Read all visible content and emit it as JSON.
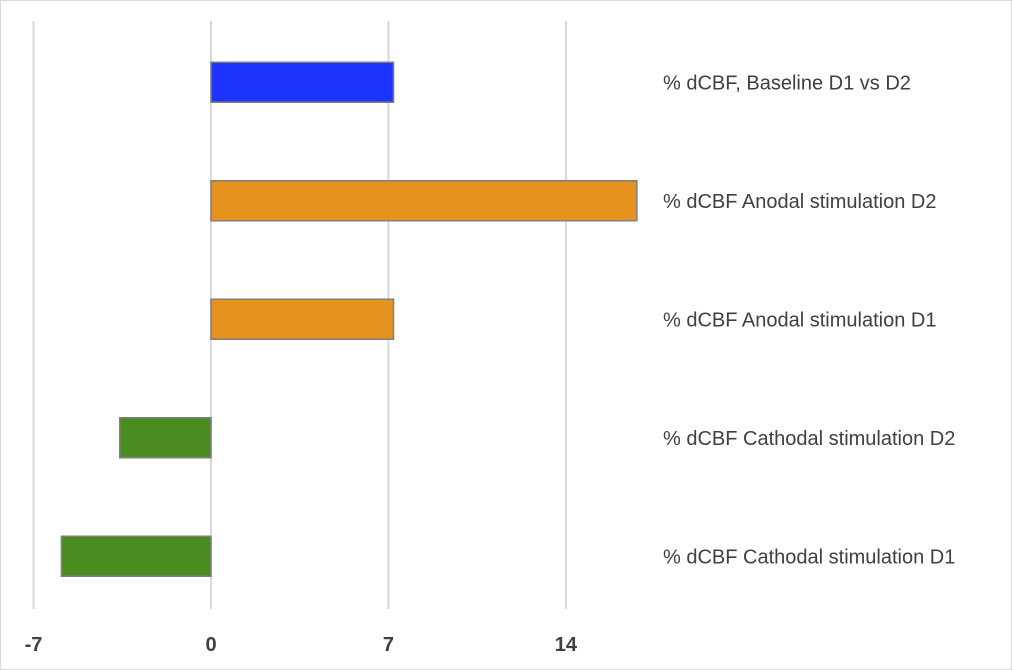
{
  "chart_data": {
    "type": "bar",
    "orientation": "horizontal",
    "title": "",
    "xlabel": "",
    "ylabel": "",
    "xlim": [
      -7,
      21
    ],
    "x_ticks": [
      -7,
      0,
      7,
      14
    ],
    "grid": true,
    "legend": "none",
    "categories": [
      "% dCBF, Baseline D1 vs D2",
      "% dCBF Anodal stimulation D2",
      "% dCBF Anodal stimulation D1",
      "% dCBF Cathodal stimulation D2",
      "% dCBF Cathodal stimulation D1"
    ],
    "values": [
      7.2,
      16.8,
      7.2,
      -3.6,
      -5.9
    ],
    "colors": [
      "#1f35ff",
      "#e6921e",
      "#e6921e",
      "#4a8c1f",
      "#4a8c1f"
    ],
    "bar_border_color": "#7f7f7f",
    "grid_color": "#d9d9d9",
    "text_color": "#404040"
  }
}
